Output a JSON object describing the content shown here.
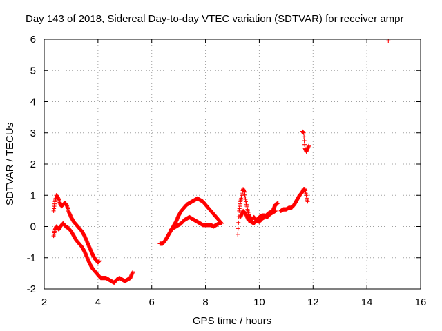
{
  "chart_data": {
    "type": "scatter",
    "title": "Day 143 of 2018, Sidereal Day-to-day VTEC variation (SDTVAR) for receiver ampr",
    "xlabel": "GPS time / hours",
    "ylabel": "SDTVAR / TECUs",
    "xlim": [
      2,
      16
    ],
    "ylim": [
      -2,
      6
    ],
    "xticks": [
      "2",
      "4",
      "6",
      "8",
      "10",
      "12",
      "14",
      "16"
    ],
    "yticks": [
      "-2",
      "-1",
      "0",
      "1",
      "2",
      "3",
      "4",
      "5",
      "6"
    ],
    "grid": true,
    "marker": "+",
    "color": "#ff0000",
    "series": [
      {
        "name": "SDTVAR",
        "segments": [
          [
            [
              2.35,
              0.5
            ],
            [
              2.4,
              0.8
            ],
            [
              2.45,
              1.0
            ],
            [
              2.5,
              0.95
            ],
            [
              2.55,
              0.85
            ],
            [
              2.6,
              0.7
            ],
            [
              2.65,
              0.65
            ],
            [
              2.7,
              0.7
            ],
            [
              2.75,
              0.75
            ],
            [
              2.8,
              0.75
            ],
            [
              2.85,
              0.65
            ],
            [
              2.9,
              0.5
            ],
            [
              3.0,
              0.3
            ],
            [
              3.1,
              0.15
            ],
            [
              3.2,
              0.05
            ],
            [
              3.3,
              -0.05
            ],
            [
              3.4,
              -0.15
            ],
            [
              3.5,
              -0.3
            ],
            [
              3.6,
              -0.5
            ],
            [
              3.7,
              -0.7
            ],
            [
              3.8,
              -0.9
            ],
            [
              3.9,
              -1.05
            ],
            [
              4.0,
              -1.15
            ],
            [
              4.05,
              -1.1
            ]
          ],
          [
            [
              2.35,
              -0.3
            ],
            [
              2.4,
              -0.1
            ],
            [
              2.45,
              0.0
            ],
            [
              2.5,
              -0.05
            ],
            [
              2.55,
              -0.1
            ],
            [
              2.6,
              0.0
            ],
            [
              2.65,
              0.05
            ],
            [
              2.7,
              0.1
            ],
            [
              2.75,
              0.05
            ],
            [
              2.8,
              0.0
            ],
            [
              2.9,
              -0.05
            ],
            [
              3.0,
              -0.15
            ],
            [
              3.1,
              -0.3
            ],
            [
              3.2,
              -0.45
            ],
            [
              3.3,
              -0.55
            ],
            [
              3.4,
              -0.65
            ],
            [
              3.5,
              -0.8
            ],
            [
              3.6,
              -1.0
            ],
            [
              3.7,
              -1.2
            ],
            [
              3.8,
              -1.35
            ],
            [
              3.9,
              -1.45
            ],
            [
              4.0,
              -1.55
            ],
            [
              4.1,
              -1.65
            ],
            [
              4.2,
              -1.65
            ],
            [
              4.3,
              -1.65
            ],
            [
              4.4,
              -1.7
            ],
            [
              4.5,
              -1.75
            ],
            [
              4.6,
              -1.8
            ],
            [
              4.7,
              -1.7
            ],
            [
              4.8,
              -1.65
            ],
            [
              4.9,
              -1.7
            ],
            [
              5.0,
              -1.75
            ],
            [
              5.1,
              -1.7
            ],
            [
              5.2,
              -1.65
            ],
            [
              5.3,
              -1.45
            ]
          ],
          [
            [
              6.3,
              -0.55
            ],
            [
              6.4,
              -0.55
            ],
            [
              6.5,
              -0.45
            ],
            [
              6.6,
              -0.3
            ],
            [
              6.7,
              -0.15
            ],
            [
              6.8,
              0.0
            ],
            [
              6.9,
              0.15
            ],
            [
              7.0,
              0.35
            ],
            [
              7.1,
              0.5
            ],
            [
              7.2,
              0.6
            ],
            [
              7.3,
              0.7
            ],
            [
              7.4,
              0.75
            ],
            [
              7.5,
              0.8
            ],
            [
              7.6,
              0.85
            ],
            [
              7.7,
              0.9
            ],
            [
              7.8,
              0.85
            ],
            [
              7.9,
              0.8
            ],
            [
              8.0,
              0.7
            ],
            [
              8.1,
              0.6
            ],
            [
              8.2,
              0.5
            ],
            [
              8.3,
              0.4
            ],
            [
              8.4,
              0.3
            ],
            [
              8.5,
              0.2
            ],
            [
              8.6,
              0.1
            ]
          ],
          [
            [
              6.7,
              -0.1
            ],
            [
              6.8,
              -0.05
            ],
            [
              6.9,
              0.0
            ],
            [
              7.0,
              0.05
            ],
            [
              7.1,
              0.1
            ],
            [
              7.2,
              0.2
            ],
            [
              7.3,
              0.25
            ],
            [
              7.4,
              0.3
            ],
            [
              7.5,
              0.25
            ],
            [
              7.6,
              0.2
            ],
            [
              7.7,
              0.15
            ],
            [
              7.8,
              0.1
            ],
            [
              7.9,
              0.05
            ],
            [
              8.0,
              0.05
            ],
            [
              8.1,
              0.05
            ],
            [
              8.2,
              0.05
            ],
            [
              8.3,
              0.0
            ],
            [
              8.4,
              0.05
            ],
            [
              8.5,
              0.1
            ],
            [
              8.6,
              0.1
            ]
          ],
          [
            [
              9.2,
              -0.25
            ],
            [
              9.25,
              0.5
            ],
            [
              9.3,
              0.8
            ],
            [
              9.35,
              1.0
            ],
            [
              9.4,
              1.2
            ],
            [
              9.45,
              1.1
            ],
            [
              9.5,
              0.8
            ],
            [
              9.6,
              0.4
            ],
            [
              9.7,
              0.2
            ],
            [
              9.8,
              0.3
            ],
            [
              9.9,
              0.2
            ],
            [
              10.0,
              0.15
            ],
            [
              10.1,
              0.25
            ],
            [
              10.2,
              0.3
            ],
            [
              10.3,
              0.4
            ],
            [
              10.4,
              0.45
            ],
            [
              10.5,
              0.5
            ],
            [
              10.6,
              0.7
            ],
            [
              10.7,
              0.75
            ]
          ],
          [
            [
              9.3,
              0.3
            ],
            [
              9.4,
              0.5
            ],
            [
              9.5,
              0.4
            ],
            [
              9.6,
              0.2
            ],
            [
              9.7,
              0.15
            ],
            [
              9.8,
              0.1
            ],
            [
              9.9,
              0.2
            ],
            [
              10.0,
              0.3
            ],
            [
              10.1,
              0.35
            ],
            [
              10.2,
              0.35
            ],
            [
              10.3,
              0.3
            ],
            [
              10.4,
              0.4
            ],
            [
              10.5,
              0.45
            ],
            [
              10.6,
              0.5
            ]
          ],
          [
            [
              10.8,
              0.5
            ],
            [
              10.9,
              0.55
            ],
            [
              11.0,
              0.55
            ],
            [
              11.1,
              0.6
            ],
            [
              11.2,
              0.6
            ],
            [
              11.3,
              0.7
            ],
            [
              11.4,
              0.85
            ],
            [
              11.5,
              1.0
            ],
            [
              11.6,
              1.1
            ],
            [
              11.65,
              1.2
            ],
            [
              11.7,
              1.2
            ],
            [
              11.75,
              1.0
            ],
            [
              11.8,
              0.8
            ]
          ],
          [
            [
              11.6,
              3.05
            ],
            [
              11.65,
              3.0
            ],
            [
              11.7,
              2.5
            ],
            [
              11.75,
              2.4
            ],
            [
              11.8,
              2.5
            ],
            [
              11.85,
              2.6
            ]
          ],
          [
            [
              14.8,
              5.95
            ]
          ]
        ]
      }
    ]
  }
}
